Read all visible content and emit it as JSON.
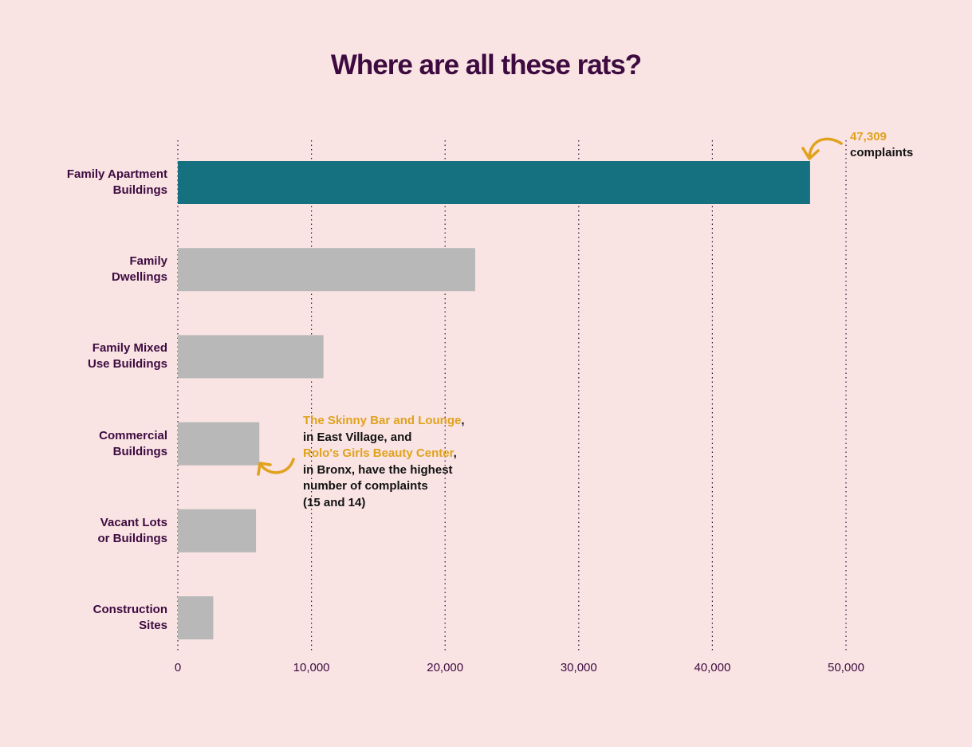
{
  "chart_data": {
    "type": "bar",
    "orientation": "horizontal",
    "title": "Where are all these rats?",
    "categories": [
      "Family Apartment\nBuildings",
      "Family\nDwellings",
      "Family Mixed\nUse Buildings",
      "Commercial\nBuildings",
      "Vacant Lots\nor Buildings",
      "Construction\nSites"
    ],
    "values": [
      47309,
      22250,
      10900,
      6100,
      5850,
      2650
    ],
    "xlim": [
      0,
      50000
    ],
    "xticks": [
      0,
      10000,
      20000,
      30000,
      40000,
      50000
    ],
    "xtick_labels": [
      "0",
      "10,000",
      "20,000",
      "30,000",
      "40,000",
      "50,000"
    ],
    "grid": "vertical dotted",
    "colors": {
      "highlight_bar": "#157080",
      "bar": "#b8b8b8",
      "annotation": "#e0a21c",
      "text": "#3d0b40",
      "background": "#f9e3e3"
    },
    "annotations": {
      "top": {
        "value_text": "47,309",
        "unit_text": "complaints"
      },
      "mid": {
        "name1": "The Skinny Bar and Lounge",
        "comma1": ",",
        "line2": "in East Village, and",
        "name2": "Rolo's Girls Beauty Center",
        "comma2": ",",
        "line4": "in Bronx, have the highest",
        "line5": "number of complaints",
        "line6": "(15 and 14)"
      }
    }
  }
}
